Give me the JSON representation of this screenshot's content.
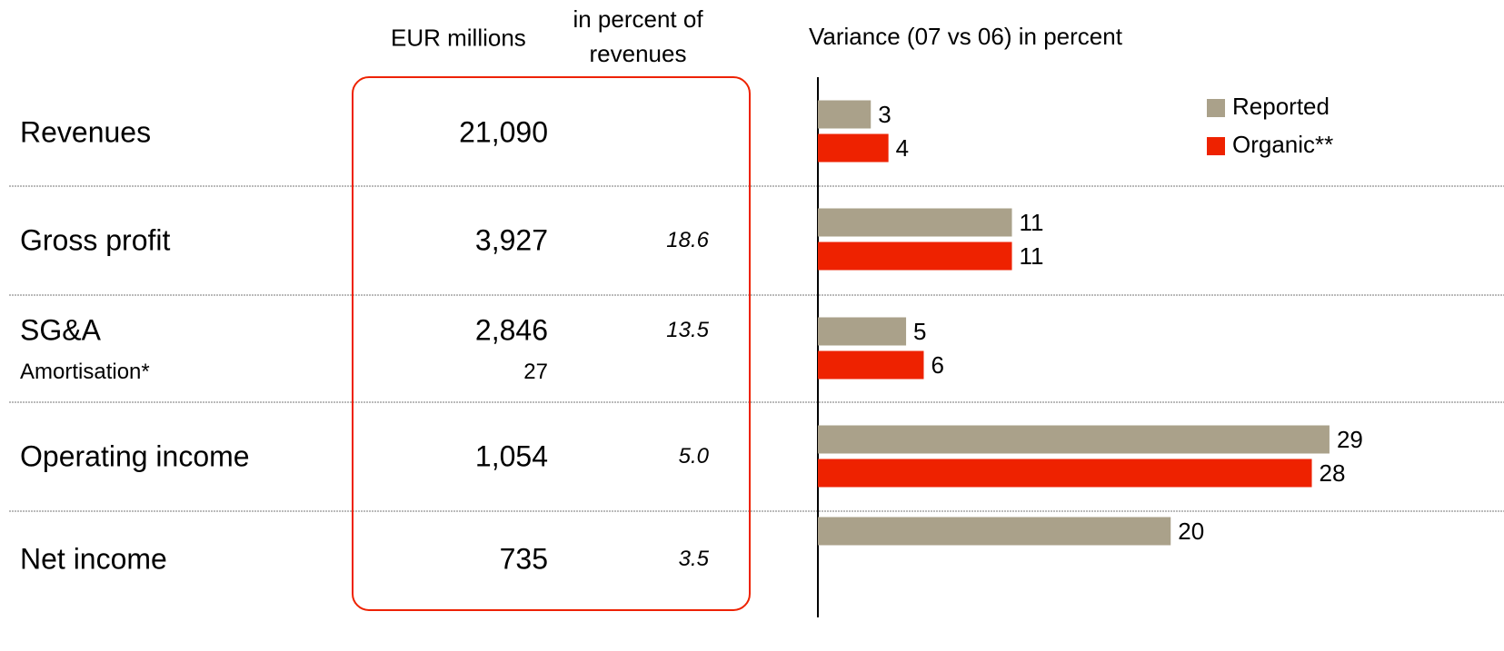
{
  "table": {
    "headers": [
      "EUR millions",
      "in percent of revenues"
    ],
    "rows": [
      [
        "Revenues",
        "21,090"
      ],
      [
        "Gross profit",
        "3,927",
        "18.6"
      ],
      [
        "SG&A",
        "2,846",
        "13.5"
      ],
      [
        "Amortisation*",
        "27"
      ],
      [
        "Operating income",
        "1,054",
        "5.0"
      ],
      [
        "Net income",
        "735",
        "3.5"
      ]
    ]
  },
  "chart_data": {
    "type": "hbar",
    "title": "Variance (07 vs 06) in percent",
    "categories": [
      null,
      null,
      null,
      null,
      null
    ],
    "series": [
      {
        "name": "Reported",
        "color": "#aaa18a",
        "values": [
          3,
          11,
          5,
          29,
          20
        ]
      },
      {
        "name": "Organic**",
        "color": "#ee2200",
        "values": [
          4,
          11,
          6,
          28,
          null
        ]
      }
    ],
    "xlim": [
      0,
      34
    ],
    "legend": "top-right"
  }
}
